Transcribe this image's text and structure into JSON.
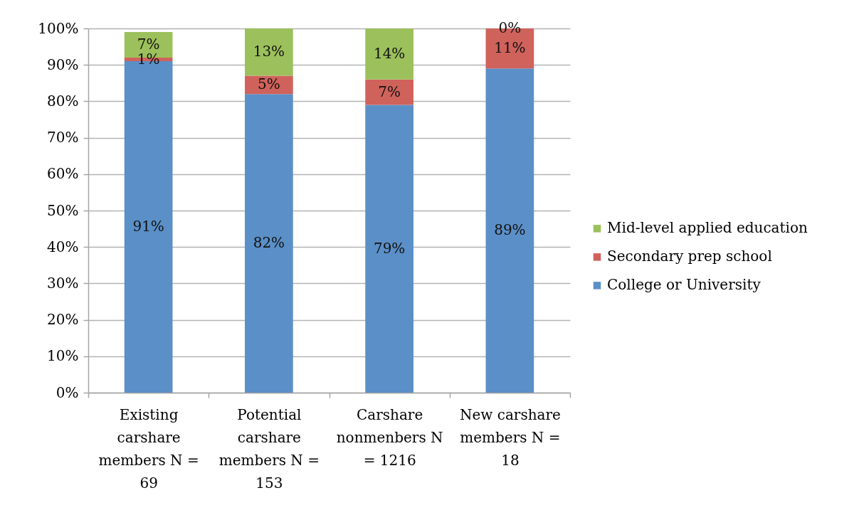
{
  "chart_data": {
    "type": "bar",
    "stacked": true,
    "categories": [
      "Existing carshare members N = 69",
      "Potential carshare members N = 153",
      "Carshare nonmenbers N = 1216",
      "New carshare members N = 18"
    ],
    "series": [
      {
        "name": "College or University",
        "color": "#5b8fc7",
        "values": [
          91,
          82,
          79,
          89
        ],
        "value_labels": [
          "91%",
          "82%",
          "79%",
          "89%"
        ]
      },
      {
        "name": "Secondary prep school",
        "color": "#d0625c",
        "values": [
          1,
          5,
          7,
          11
        ],
        "value_labels": [
          "1%",
          "5%",
          "7%",
          "11%"
        ]
      },
      {
        "name": "Mid-level applied education",
        "color": "#9cc05c",
        "values": [
          7,
          13,
          14,
          0
        ],
        "value_labels": [
          "7%",
          "13%",
          "14%",
          "0%"
        ]
      }
    ],
    "ylim": [
      0,
      100
    ],
    "yticks": [
      {
        "value": 0,
        "label": "0%"
      },
      {
        "value": 10,
        "label": "10%"
      },
      {
        "value": 20,
        "label": "20%"
      },
      {
        "value": 30,
        "label": "30%"
      },
      {
        "value": 40,
        "label": "40%"
      },
      {
        "value": 50,
        "label": "50%"
      },
      {
        "value": 60,
        "label": "60%"
      },
      {
        "value": 70,
        "label": "70%"
      },
      {
        "value": 80,
        "label": "80%"
      },
      {
        "value": 90,
        "label": "90%"
      },
      {
        "value": 100,
        "label": "100%"
      }
    ],
    "grid": "y",
    "legend": "right"
  }
}
